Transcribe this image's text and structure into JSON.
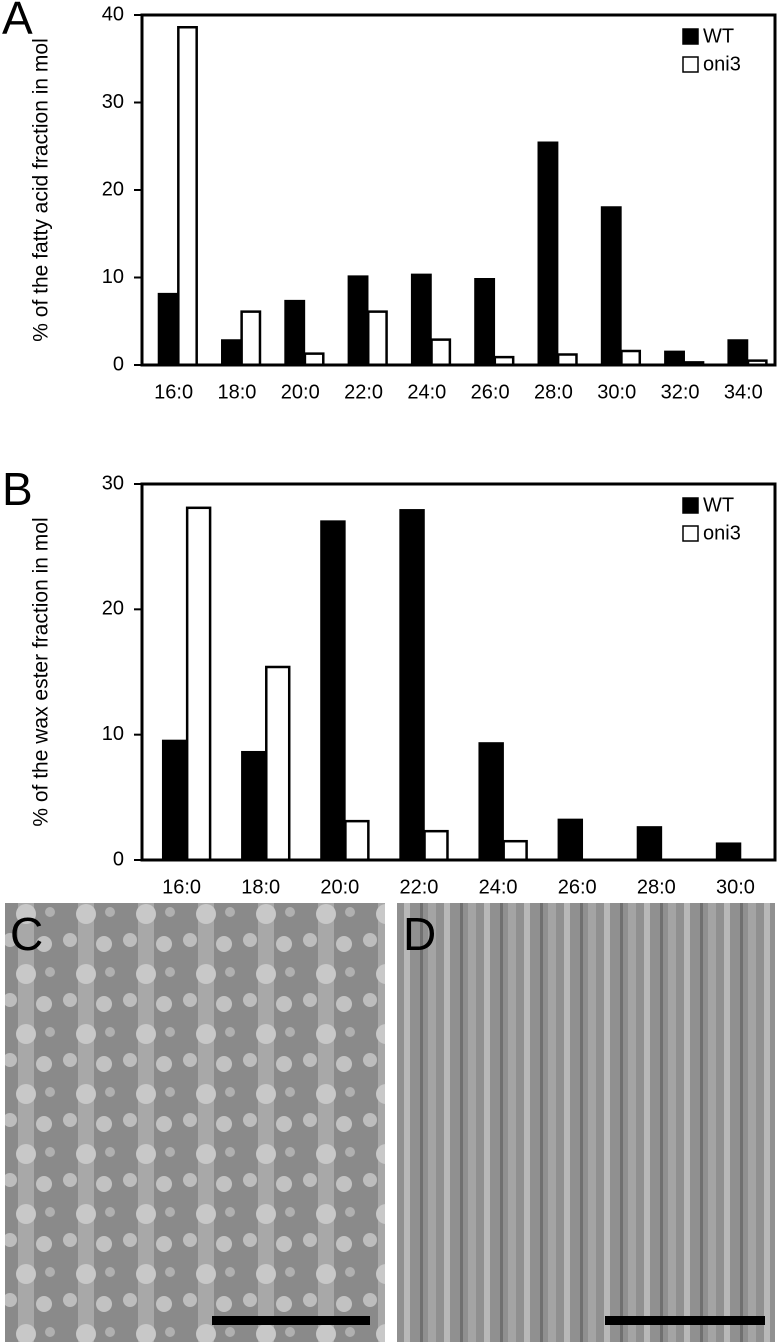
{
  "chart_data": [
    {
      "type": "bar",
      "panel": "A",
      "ylabel": "% of the fatty acid fraction in mol",
      "categories": [
        "16:0",
        "18:0",
        "20:0",
        "22:0",
        "24:0",
        "26:0",
        "28:0",
        "30:0",
        "32:0",
        "34:0"
      ],
      "series": [
        {
          "name": "WT",
          "color": "#000000",
          "values": [
            8.1,
            2.8,
            7.3,
            10.1,
            10.3,
            9.8,
            25.4,
            18,
            1.5,
            2.8
          ]
        },
        {
          "name": "oni3",
          "color": "#ffffff",
          "values": [
            38.6,
            6.1,
            1.3,
            6.1,
            2.9,
            0.9,
            1.2,
            1.6,
            0.3,
            0.5
          ]
        }
      ],
      "ylim": [
        0,
        40
      ],
      "yticks": [
        0,
        10,
        20,
        30,
        40
      ],
      "legend": "top-right"
    },
    {
      "type": "bar",
      "panel": "B",
      "ylabel": "% of the wax ester fraction in mol",
      "categories": [
        "16:0",
        "18:0",
        "20:0",
        "22:0",
        "24:0",
        "26:0",
        "28:0",
        "30:0"
      ],
      "series": [
        {
          "name": "WT",
          "color": "#000000",
          "values": [
            9.5,
            8.6,
            27,
            27.9,
            9.3,
            3.2,
            2.6,
            1.3
          ]
        },
        {
          "name": "oni3",
          "color": "#ffffff",
          "values": [
            28.1,
            15.4,
            3.1,
            2.3,
            1.5,
            0,
            0,
            0
          ]
        }
      ],
      "ylim": [
        0,
        30
      ],
      "yticks": [
        0,
        10,
        20,
        30
      ],
      "legend": "top-right"
    }
  ],
  "images": [
    {
      "panel": "C"
    },
    {
      "panel": "D"
    }
  ]
}
